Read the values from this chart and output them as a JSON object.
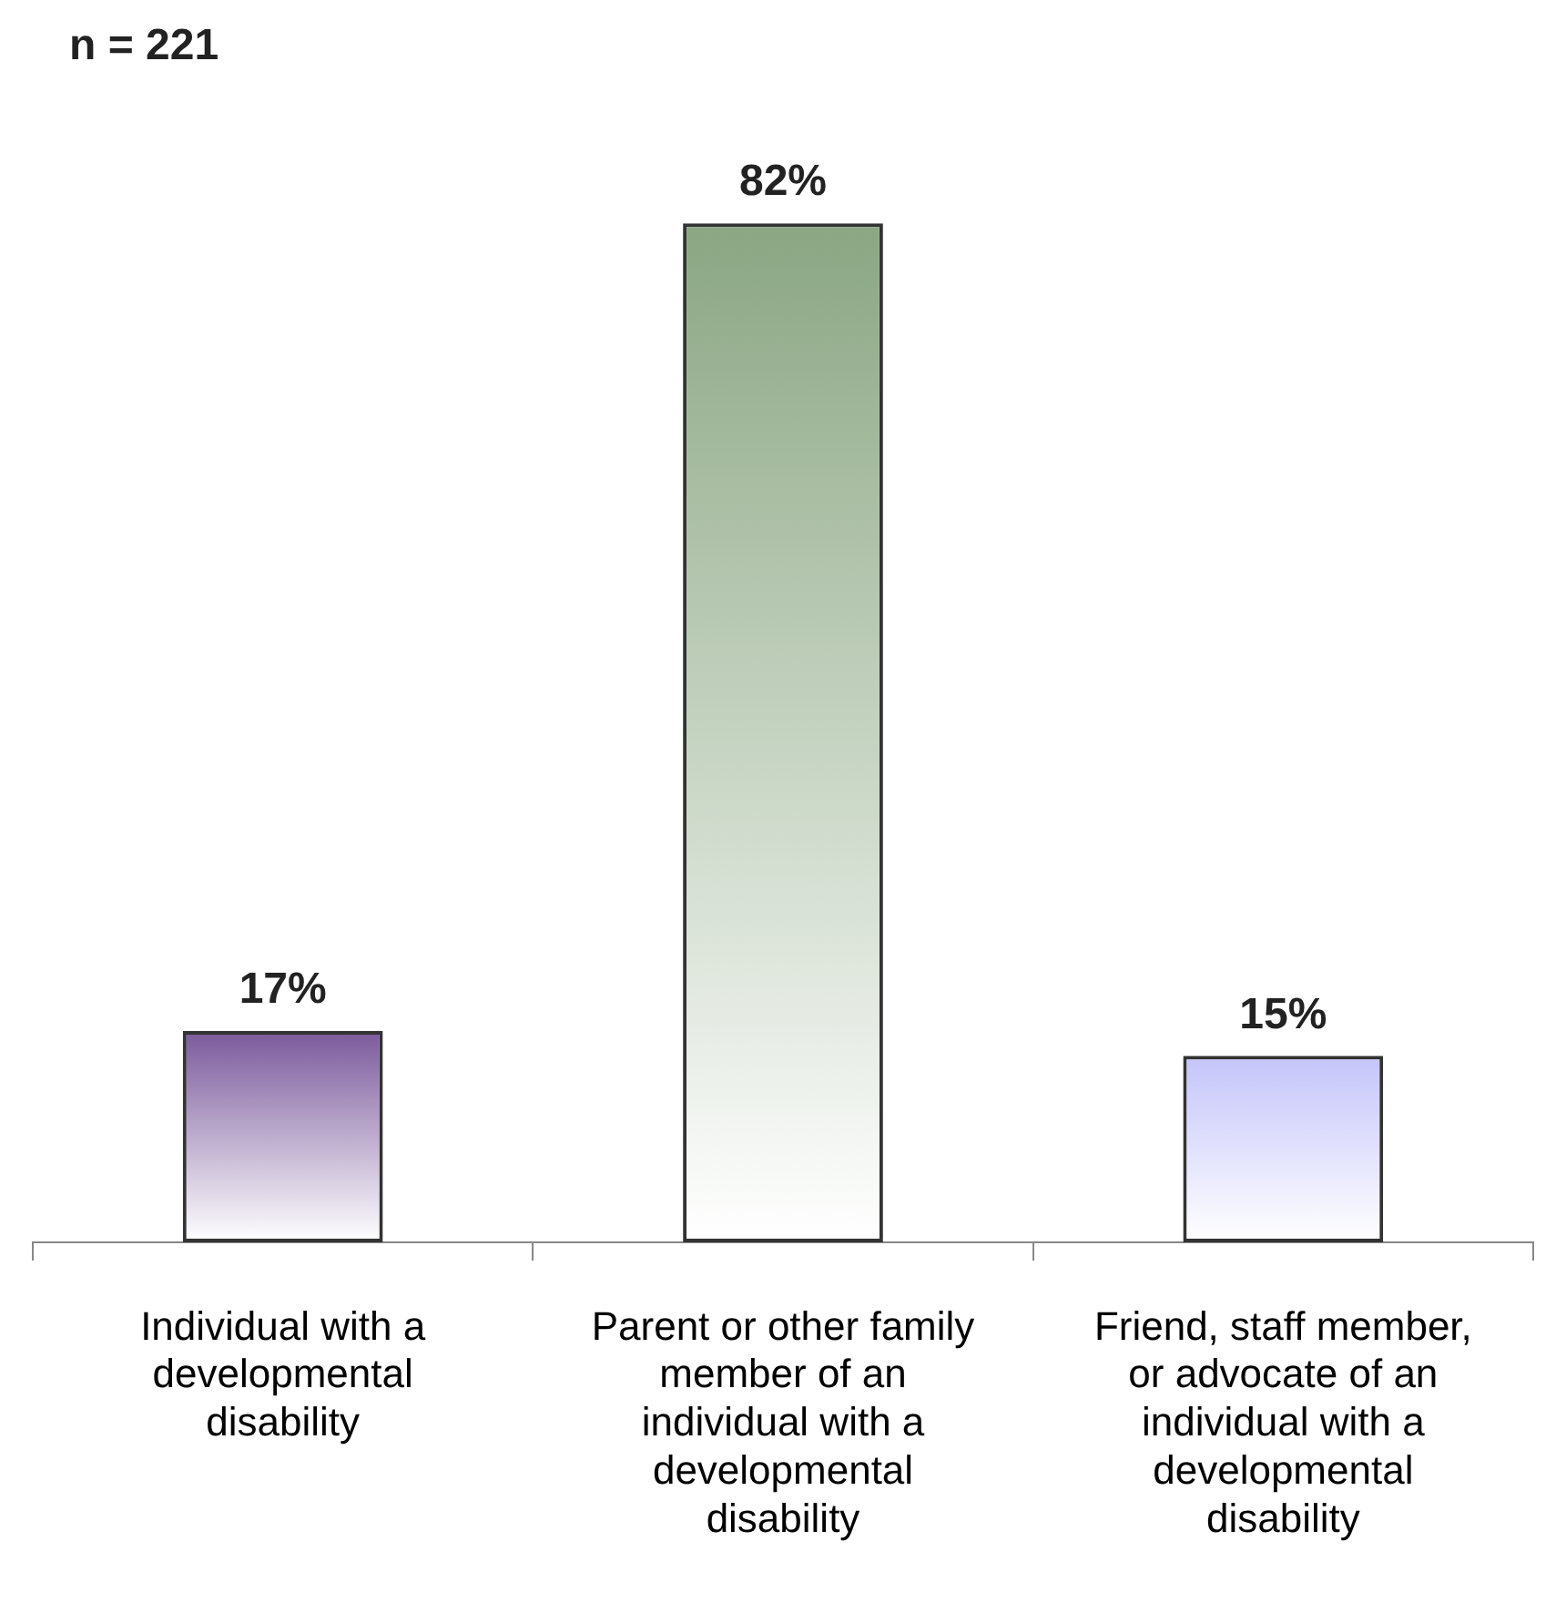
{
  "chart_data": {
    "type": "bar",
    "categories": [
      "Individual with a developmental disability",
      "Parent or other family member of an individual with a developmental disability",
      "Friend, staff member, or advocate of an individual with a developmental disability"
    ],
    "values": [
      17,
      82,
      15
    ],
    "colors": [
      "#7b5a9c",
      "#8aa682",
      "#c4c4fa"
    ],
    "value_labels": [
      "17%",
      "82%",
      "15%"
    ],
    "legend": false,
    "grid": false,
    "annotations": [
      "n = 221"
    ]
  }
}
